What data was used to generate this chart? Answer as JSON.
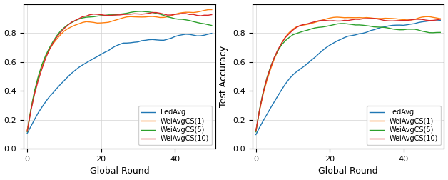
{
  "xlabel": "Global Round",
  "ylabel_left": "",
  "ylabel_right": "Test Accuracy",
  "xlim": [
    -1,
    51
  ],
  "ylim": [
    0.0,
    1.0
  ],
  "yticks": [
    0.0,
    0.2,
    0.4,
    0.6,
    0.8
  ],
  "xticks": [
    0,
    20,
    40
  ],
  "colors": {
    "FedAvg": "#1f77b4",
    "WeiAvgCS1": "#ff7f0e",
    "WeiAvgCS5": "#2ca02c",
    "WeiAvgCS10": "#d62728"
  },
  "legend_labels": [
    "FedAvg",
    "WeiAvgCS(1)",
    "WeiAvgCS(5)",
    "WeiAvgCS(10)"
  ],
  "num_rounds": 50
}
